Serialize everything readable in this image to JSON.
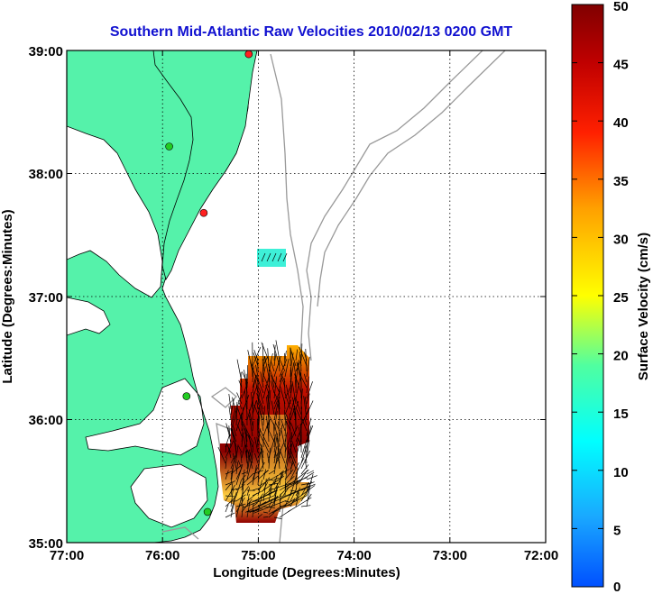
{
  "title": "Southern Mid-Atlantic Raw Velocities 2010/02/13 0200 GMT",
  "xaxis": {
    "label": "Longitude (Degrees:Minutes)",
    "ticks": [
      "77:00",
      "76:00",
      "75:00",
      "74:00",
      "73:00",
      "72:00"
    ]
  },
  "yaxis": {
    "label": "Latitude (Degrees:Minutes)",
    "ticks": [
      "39:00",
      "38:00",
      "37:00",
      "36:00",
      "35:00"
    ]
  },
  "colorbar": {
    "label": "Surface Velocity (cm/s)",
    "ticks": [
      "50",
      "45",
      "40",
      "35",
      "30",
      "25",
      "20",
      "15",
      "10",
      "5",
      "0"
    ],
    "range": [
      0,
      50
    ]
  },
  "map": {
    "lon_range": [
      -77,
      -72
    ],
    "lat_range": [
      35,
      39
    ],
    "land_color": "#55f2aa",
    "water_color": "#ffffff",
    "bathymetry_color": "#999999",
    "grid": "dotted"
  },
  "stations": [
    {
      "lon": -75.1,
      "lat": 38.97,
      "color": "#ff2020"
    },
    {
      "lon": -75.93,
      "lat": 38.22,
      "color": "#22cc22"
    },
    {
      "lon": -75.57,
      "lat": 37.68,
      "color": "#ff2020"
    },
    {
      "lon": -75.75,
      "lat": 36.19,
      "color": "#22cc22"
    },
    {
      "lon": -75.53,
      "lat": 35.25,
      "color": "#22cc22"
    }
  ]
}
